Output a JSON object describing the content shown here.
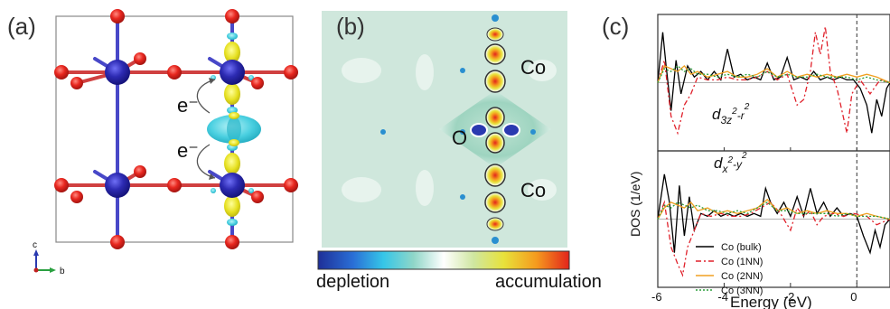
{
  "panel_a": {
    "label": "(a)",
    "electron_top": "e⁻",
    "electron_bottom": "e⁻",
    "axis_c": "c",
    "axis_b": "b"
  },
  "panel_b": {
    "label": "(b)",
    "atom_co_top": "Co",
    "atom_o": "O",
    "atom_co_bottom": "Co",
    "colorbar_left": "depletion",
    "colorbar_right": "accumulation",
    "colorbar_colors": [
      "#1e2f98",
      "#2a6fd6",
      "#35c6e8",
      "#8fd6c8",
      "#ffffff",
      "#cfe6a0",
      "#e8e23a",
      "#f59a1e",
      "#e2241c"
    ]
  },
  "chart_data": {
    "type": "line",
    "label": "(c)",
    "xlabel": "Energy (eV)",
    "ylabel": "DOS (1/eV)",
    "xlim": [
      -6,
      1
    ],
    "xticks": [
      "-6",
      "-4",
      "-2",
      "0"
    ],
    "fermi_level": 0,
    "subpanels": [
      {
        "orbital_main": "d",
        "orbital_sub": "3z",
        "orbital_sup1": "2",
        "orbital_mid": "-r",
        "orbital_sup2": "2"
      },
      {
        "orbital_main": "d",
        "orbital_sub": "x",
        "orbital_sup1": "2",
        "orbital_mid": "-y",
        "orbital_sup2": "2"
      }
    ],
    "series": [
      {
        "name": "Co (bulk)",
        "color": "#000000",
        "dash": "none",
        "top": [
          [
            -6,
            0
          ],
          [
            -5.85,
            0.9
          ],
          [
            -5.75,
            0.3
          ],
          [
            -5.6,
            -0.5
          ],
          [
            -5.45,
            0.4
          ],
          [
            -5.3,
            -0.2
          ],
          [
            -5.1,
            0.3
          ],
          [
            -4.9,
            0.1
          ],
          [
            -4.7,
            0.2
          ],
          [
            -4.5,
            0.05
          ],
          [
            -4.3,
            0.2
          ],
          [
            -4.1,
            0.05
          ],
          [
            -3.9,
            0.6
          ],
          [
            -3.7,
            0.1
          ],
          [
            -3.5,
            0.15
          ],
          [
            -3.3,
            0.05
          ],
          [
            -3.1,
            0.1
          ],
          [
            -2.9,
            0.05
          ],
          [
            -2.7,
            0.35
          ],
          [
            -2.5,
            0.05
          ],
          [
            -2.3,
            0.1
          ],
          [
            -2.1,
            0.45
          ],
          [
            -1.9,
            0.05
          ],
          [
            -1.7,
            0.1
          ],
          [
            -1.5,
            0.05
          ],
          [
            -1.3,
            0.2
          ],
          [
            -1.1,
            0.05
          ],
          [
            -0.9,
            0.1
          ],
          [
            -0.7,
            0.05
          ],
          [
            -0.5,
            0.1
          ],
          [
            -0.3,
            0.05
          ],
          [
            -0.1,
            0.05
          ],
          [
            0.1,
            -0.1
          ],
          [
            0.3,
            -0.4
          ],
          [
            0.45,
            -0.9
          ],
          [
            0.6,
            -0.3
          ],
          [
            0.75,
            -0.6
          ],
          [
            0.9,
            -0.1
          ],
          [
            1,
            0
          ]
        ],
        "bottom": [
          [
            -6,
            0
          ],
          [
            -5.8,
            0.8
          ],
          [
            -5.65,
            0.3
          ],
          [
            -5.5,
            -0.6
          ],
          [
            -5.35,
            0.6
          ],
          [
            -5.2,
            -0.3
          ],
          [
            -5.05,
            0.4
          ],
          [
            -4.9,
            -0.2
          ],
          [
            -4.7,
            0.1
          ],
          [
            -4.5,
            0.05
          ],
          [
            -4.3,
            0.15
          ],
          [
            -4.1,
            0.05
          ],
          [
            -3.9,
            0.1
          ],
          [
            -3.7,
            0.05
          ],
          [
            -3.5,
            0.1
          ],
          [
            -3.3,
            0.05
          ],
          [
            -3.1,
            0.1
          ],
          [
            -2.9,
            0.05
          ],
          [
            -2.75,
            0.55
          ],
          [
            -2.6,
            0.3
          ],
          [
            -2.4,
            0.1
          ],
          [
            -2.2,
            0.3
          ],
          [
            -2.0,
            0.05
          ],
          [
            -1.8,
            0.4
          ],
          [
            -1.6,
            0.05
          ],
          [
            -1.4,
            0.55
          ],
          [
            -1.2,
            0.1
          ],
          [
            -1.0,
            0.3
          ],
          [
            -0.8,
            0.05
          ],
          [
            -0.6,
            0.2
          ],
          [
            -0.4,
            0.05
          ],
          [
            -0.2,
            0.1
          ],
          [
            0,
            0.05
          ],
          [
            0.2,
            -0.3
          ],
          [
            0.4,
            -0.6
          ],
          [
            0.55,
            -0.2
          ],
          [
            0.7,
            -0.5
          ],
          [
            0.85,
            -0.1
          ],
          [
            1,
            0
          ]
        ]
      },
      {
        "name": "Co (1NN)",
        "color": "#e0202a",
        "dash": "6 3 2 3",
        "top": [
          [
            -6,
            0
          ],
          [
            -5.8,
            0.4
          ],
          [
            -5.6,
            -0.6
          ],
          [
            -5.4,
            -0.9
          ],
          [
            -5.2,
            -0.4
          ],
          [
            -5.0,
            -0.2
          ],
          [
            -4.8,
            0.1
          ],
          [
            -4.5,
            0.05
          ],
          [
            -4.2,
            0.05
          ],
          [
            -3.9,
            0.1
          ],
          [
            -3.6,
            0.05
          ],
          [
            -3.3,
            0.05
          ],
          [
            -3.0,
            0.1
          ],
          [
            -2.7,
            0.2
          ],
          [
            -2.4,
            0.05
          ],
          [
            -2.1,
            0.15
          ],
          [
            -1.8,
            -0.4
          ],
          [
            -1.6,
            -0.3
          ],
          [
            -1.4,
            0.2
          ],
          [
            -1.25,
            0.9
          ],
          [
            -1.1,
            0.5
          ],
          [
            -0.95,
            1.0
          ],
          [
            -0.8,
            0.2
          ],
          [
            -0.6,
            -0.1
          ],
          [
            -0.45,
            -0.5
          ],
          [
            -0.3,
            -0.9
          ],
          [
            -0.15,
            -0.2
          ],
          [
            0.1,
            0.05
          ],
          [
            0.4,
            -0.2
          ],
          [
            0.7,
            0.05
          ],
          [
            1,
            0
          ]
        ],
        "bottom": [
          [
            -6,
            0
          ],
          [
            -5.8,
            0.3
          ],
          [
            -5.6,
            -0.5
          ],
          [
            -5.4,
            -0.8
          ],
          [
            -5.25,
            -1.0
          ],
          [
            -5.1,
            -0.5
          ],
          [
            -4.9,
            -0.2
          ],
          [
            -4.7,
            0.1
          ],
          [
            -4.4,
            0.05
          ],
          [
            -4.1,
            0.1
          ],
          [
            -3.8,
            0.05
          ],
          [
            -3.5,
            0.05
          ],
          [
            -3.2,
            0.1
          ],
          [
            -2.9,
            0.2
          ],
          [
            -2.6,
            0.3
          ],
          [
            -2.3,
            0.1
          ],
          [
            -2.0,
            -0.2
          ],
          [
            -1.8,
            0.2
          ],
          [
            -1.6,
            0.05
          ],
          [
            -1.4,
            0.15
          ],
          [
            -1.2,
            -0.1
          ],
          [
            -1.0,
            0.05
          ],
          [
            -0.7,
            0.1
          ],
          [
            -0.4,
            0.05
          ],
          [
            -0.1,
            0.1
          ],
          [
            0.3,
            0.05
          ],
          [
            0.6,
            -0.1
          ],
          [
            1,
            0
          ]
        ]
      },
      {
        "name": "Co (2NN)",
        "color": "#f0a020",
        "dash": "none",
        "top": [
          [
            -6,
            0
          ],
          [
            -5.8,
            0.3
          ],
          [
            -5.6,
            0.25
          ],
          [
            -5.4,
            0.2
          ],
          [
            -5.2,
            0.3
          ],
          [
            -5.0,
            0.15
          ],
          [
            -4.8,
            0.2
          ],
          [
            -4.5,
            0.1
          ],
          [
            -4.2,
            0.15
          ],
          [
            -3.9,
            0.2
          ],
          [
            -3.6,
            0.1
          ],
          [
            -3.3,
            0.1
          ],
          [
            -3.0,
            0.15
          ],
          [
            -2.7,
            0.25
          ],
          [
            -2.4,
            0.1
          ],
          [
            -2.1,
            0.2
          ],
          [
            -1.8,
            0.1
          ],
          [
            -1.5,
            0.15
          ],
          [
            -1.2,
            0.1
          ],
          [
            -0.9,
            0.15
          ],
          [
            -0.6,
            0.1
          ],
          [
            -0.3,
            0.15
          ],
          [
            0,
            0.1
          ],
          [
            0.3,
            0.15
          ],
          [
            0.6,
            0.1
          ],
          [
            1,
            0
          ]
        ],
        "bottom": [
          [
            -6,
            0
          ],
          [
            -5.8,
            0.2
          ],
          [
            -5.6,
            0.3
          ],
          [
            -5.4,
            0.25
          ],
          [
            -5.2,
            0.2
          ],
          [
            -5.0,
            0.3
          ],
          [
            -4.8,
            0.15
          ],
          [
            -4.5,
            0.2
          ],
          [
            -4.2,
            0.1
          ],
          [
            -3.9,
            0.15
          ],
          [
            -3.6,
            0.1
          ],
          [
            -3.3,
            0.15
          ],
          [
            -3.0,
            0.2
          ],
          [
            -2.7,
            0.35
          ],
          [
            -2.4,
            0.15
          ],
          [
            -2.1,
            0.2
          ],
          [
            -1.8,
            0.1
          ],
          [
            -1.5,
            0.15
          ],
          [
            -1.2,
            0.1
          ],
          [
            -0.9,
            0.15
          ],
          [
            -0.6,
            0.1
          ],
          [
            -0.3,
            0.1
          ],
          [
            0,
            0.05
          ],
          [
            0.3,
            0.1
          ],
          [
            0.6,
            0.05
          ],
          [
            1,
            0
          ]
        ]
      },
      {
        "name": "Co (3NN)",
        "color": "#2a9e3a",
        "dash": "2 2",
        "top": [
          [
            -6,
            0
          ],
          [
            -5.8,
            0.25
          ],
          [
            -5.6,
            0.2
          ],
          [
            -5.4,
            0.3
          ],
          [
            -5.2,
            0.2
          ],
          [
            -5.0,
            0.25
          ],
          [
            -4.8,
            0.15
          ],
          [
            -4.5,
            0.15
          ],
          [
            -4.2,
            0.1
          ],
          [
            -3.9,
            0.15
          ],
          [
            -3.6,
            0.1
          ],
          [
            -3.3,
            0.15
          ],
          [
            -3.0,
            0.1
          ],
          [
            -2.7,
            0.2
          ],
          [
            -2.4,
            0.1
          ],
          [
            -2.1,
            0.15
          ],
          [
            -1.8,
            0.1
          ],
          [
            -1.5,
            0.1
          ],
          [
            -1.2,
            0.15
          ],
          [
            -0.9,
            0.1
          ],
          [
            -0.6,
            0.1
          ],
          [
            -0.3,
            0.1
          ],
          [
            0,
            0.05
          ],
          [
            0.3,
            0.1
          ],
          [
            0.6,
            0.05
          ],
          [
            1,
            0
          ]
        ],
        "bottom": [
          [
            -6,
            0
          ],
          [
            -5.8,
            0.25
          ],
          [
            -5.6,
            0.2
          ],
          [
            -5.4,
            0.3
          ],
          [
            -5.2,
            0.25
          ],
          [
            -5.0,
            0.2
          ],
          [
            -4.8,
            0.25
          ],
          [
            -4.5,
            0.15
          ],
          [
            -4.2,
            0.15
          ],
          [
            -3.9,
            0.1
          ],
          [
            -3.6,
            0.15
          ],
          [
            -3.3,
            0.1
          ],
          [
            -3.0,
            0.2
          ],
          [
            -2.7,
            0.3
          ],
          [
            -2.4,
            0.15
          ],
          [
            -2.1,
            0.15
          ],
          [
            -1.8,
            0.1
          ],
          [
            -1.5,
            0.1
          ],
          [
            -1.2,
            0.1
          ],
          [
            -0.9,
            0.1
          ],
          [
            -0.6,
            0.05
          ],
          [
            -0.3,
            0.1
          ],
          [
            0,
            0.05
          ],
          [
            0.3,
            0.05
          ],
          [
            0.6,
            0.05
          ],
          [
            1,
            0
          ]
        ]
      }
    ]
  }
}
